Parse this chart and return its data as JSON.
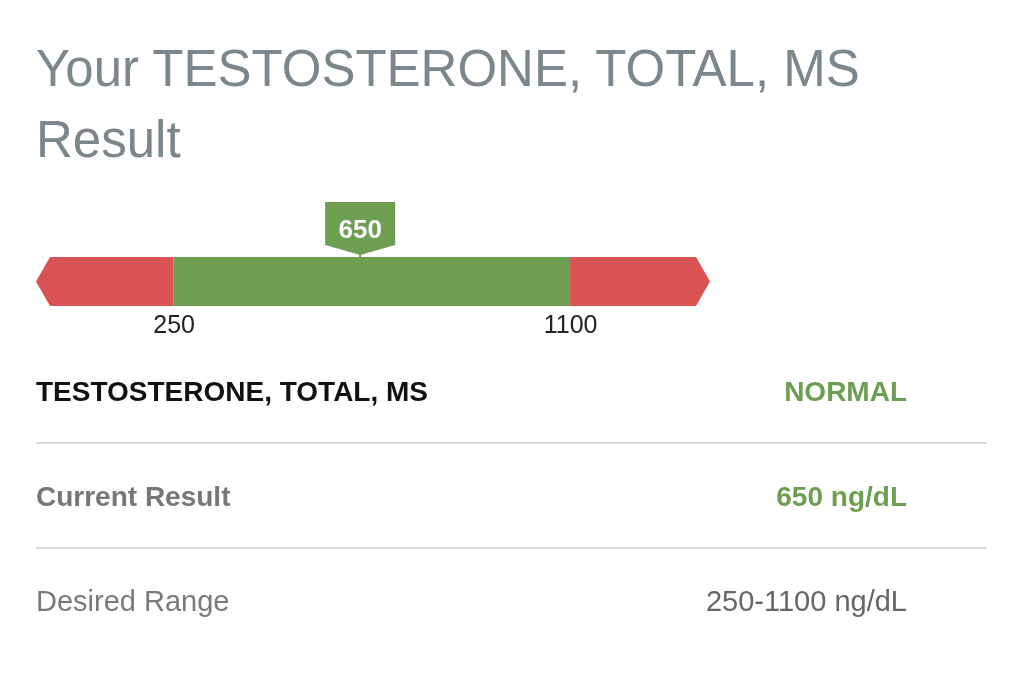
{
  "chart_data": {
    "type": "bar",
    "orientation": "horizontal",
    "title": "Your TESTOSTERONE, TOTAL, MS Result",
    "categories": [
      null
    ],
    "base": [
      250
    ],
    "values": [
      850
    ],
    "color": "#6e9e51",
    "xlim": [
      -45,
      1400
    ],
    "xticks": [
      250,
      1100
    ],
    "tick_labels": "x",
    "bands": [
      {
        "axis": "x",
        "from": -45,
        "to": 250,
        "color": "#d95254"
      },
      {
        "axis": "x",
        "from": 1100,
        "to": 1400,
        "color": "#d95254"
      }
    ],
    "ref_lines": [
      {
        "axis": "x",
        "value": 650,
        "label": "650",
        "color": "#6e9e51"
      }
    ],
    "annotations": [
      "TESTOSTERONE, TOTAL, MS",
      "NORMAL",
      "Current Result",
      "650 ng/dL",
      "Desired Range",
      "250-1100 ng/dL"
    ]
  }
}
